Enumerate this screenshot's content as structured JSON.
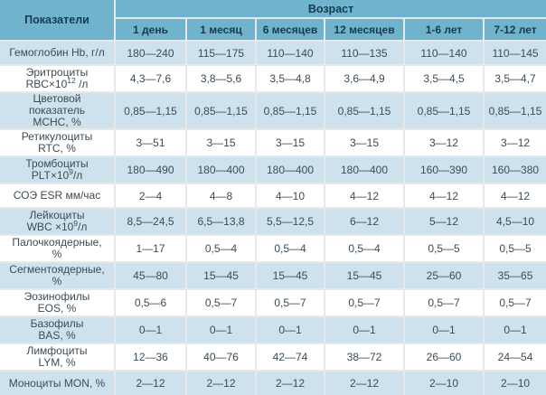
{
  "chart_data": {
    "type": "table",
    "corner_header": "Показатели",
    "age_header": "Возраст",
    "columns": [
      "1 день",
      "1 месяц",
      "6 месяцев",
      "12 месяцев",
      "1-6 лет",
      "7-12 лет"
    ],
    "rows": [
      {
        "label_text": "Гемоглобин Hb, г/л",
        "label": [
          {
            "segments": [
              {
                "text": "Гемоглобин Hb, г/л",
                "sup": false
              }
            ]
          }
        ],
        "values": [
          "180—240",
          "115—175",
          "110—140",
          "110—135",
          "110—140",
          "110—145"
        ]
      },
      {
        "label_text": "Эритроциты RBC×10¹² /л",
        "label": [
          {
            "segments": [
              {
                "text": "Эритроциты",
                "sup": false
              }
            ]
          },
          {
            "segments": [
              {
                "text": "RBC×10",
                "sup": false
              },
              {
                "text": "12",
                "sup": true
              },
              {
                "text": " /л",
                "sup": false
              }
            ]
          }
        ],
        "values": [
          "4,3—7,6",
          "3,8—5,6",
          "3,5—4,8",
          "3,6—4,9",
          "3,5—4,5",
          "3,5—4,7"
        ]
      },
      {
        "label_text": "Цветовой показатель MCHC, %",
        "label": [
          {
            "segments": [
              {
                "text": "Цветовой",
                "sup": false
              }
            ]
          },
          {
            "segments": [
              {
                "text": "показатель",
                "sup": false
              }
            ]
          },
          {
            "segments": [
              {
                "text": "MCHC, %",
                "sup": false
              }
            ]
          }
        ],
        "values": [
          "0,85—1,15",
          "0,85—1,15",
          "0,85—1,15",
          "0,85—1,15",
          "0,85—1,15",
          "0,85—1,15"
        ]
      },
      {
        "label_text": "Ретикулоциты RTC, %",
        "label": [
          {
            "segments": [
              {
                "text": "Ретикулоциты",
                "sup": false
              }
            ]
          },
          {
            "segments": [
              {
                "text": "RTC, %",
                "sup": false
              }
            ]
          }
        ],
        "values": [
          "3—51",
          "3—15",
          "3—15",
          "3—15",
          "3—12",
          "3—12"
        ]
      },
      {
        "label_text": "Тромбоциты PLT×10⁹/л",
        "label": [
          {
            "segments": [
              {
                "text": "Тромбоциты",
                "sup": false
              }
            ]
          },
          {
            "segments": [
              {
                "text": "PLT×10",
                "sup": false
              },
              {
                "text": "9",
                "sup": true
              },
              {
                "text": "/л",
                "sup": false
              }
            ]
          }
        ],
        "values": [
          "180—490",
          "180—400",
          "180—400",
          "180—400",
          "160—390",
          "160—380"
        ]
      },
      {
        "label_text": "СОЭ ESR мм/час",
        "label": [
          {
            "segments": [
              {
                "text": "СОЭ ESR мм/час",
                "sup": false
              }
            ]
          }
        ],
        "values": [
          "2—4",
          "4—8",
          "4—10",
          "4—12",
          "4—12",
          "4—12"
        ]
      },
      {
        "label_text": "Лейкоциты WBC ×10⁹/л",
        "label": [
          {
            "segments": [
              {
                "text": "Лейкоциты",
                "sup": false
              }
            ]
          },
          {
            "segments": [
              {
                "text": "WBC ×10",
                "sup": false
              },
              {
                "text": "9",
                "sup": true
              },
              {
                "text": "/л",
                "sup": false
              }
            ]
          }
        ],
        "values": [
          "8,5—24,5",
          "6,5—13,8",
          "5,5—12,5",
          "6—12",
          "5—12",
          "4,5—10"
        ]
      },
      {
        "label_text": "Палочкоядерные, %",
        "label": [
          {
            "segments": [
              {
                "text": "Палочкоядерные,",
                "sup": false
              }
            ]
          },
          {
            "segments": [
              {
                "text": "%",
                "sup": false
              }
            ]
          }
        ],
        "values": [
          "1—17",
          "0,5—4",
          "0,5—4",
          "0,5—4",
          "0,5—5",
          "0,5—5"
        ]
      },
      {
        "label_text": "Сегментоядерные, %",
        "label": [
          {
            "segments": [
              {
                "text": "Сегментоядерные,",
                "sup": false
              }
            ]
          },
          {
            "segments": [
              {
                "text": "%",
                "sup": false
              }
            ]
          }
        ],
        "values": [
          "45—80",
          "15—45",
          "15—45",
          "15—45",
          "25—60",
          "35—65"
        ]
      },
      {
        "label_text": "Эозинофилы EOS, %",
        "label": [
          {
            "segments": [
              {
                "text": "Эозинофилы",
                "sup": false
              }
            ]
          },
          {
            "segments": [
              {
                "text": "EOS, %",
                "sup": false
              }
            ]
          }
        ],
        "values": [
          "0,5—6",
          "0,5—7",
          "0,5—7",
          "0,5—7",
          "0,5—7",
          "0,5—7"
        ]
      },
      {
        "label_text": "Базофилы BAS, %",
        "label": [
          {
            "segments": [
              {
                "text": "Базофилы",
                "sup": false
              }
            ]
          },
          {
            "segments": [
              {
                "text": "BAS, %",
                "sup": false
              }
            ]
          }
        ],
        "values": [
          "0—1",
          "0—1",
          "0—1",
          "0—1",
          "0—1",
          "0—1"
        ]
      },
      {
        "label_text": "Лимфоциты LYM, %",
        "label": [
          {
            "segments": [
              {
                "text": "Лимфоциты",
                "sup": false
              }
            ]
          },
          {
            "segments": [
              {
                "text": "LYM, %",
                "sup": false
              }
            ]
          }
        ],
        "values": [
          "12—36",
          "40—76",
          "42—74",
          "38—72",
          "26—60",
          "24—54"
        ]
      },
      {
        "label_text": "Моноциты MON, %",
        "label": [
          {
            "segments": [
              {
                "text": "Моноциты MON, %",
                "sup": false
              }
            ]
          }
        ],
        "values": [
          "2—12",
          "2—12",
          "2—12",
          "2—12",
          "2—10",
          "2—10"
        ]
      }
    ]
  },
  "colors": {
    "header_bg": "#6fb3cd",
    "header_text": "#173a50",
    "row_alt_bg": "#cde2ec",
    "row_bg": "#ffffff",
    "cell_text": "#3d4b55",
    "grid_line": "#e6e9e9"
  }
}
